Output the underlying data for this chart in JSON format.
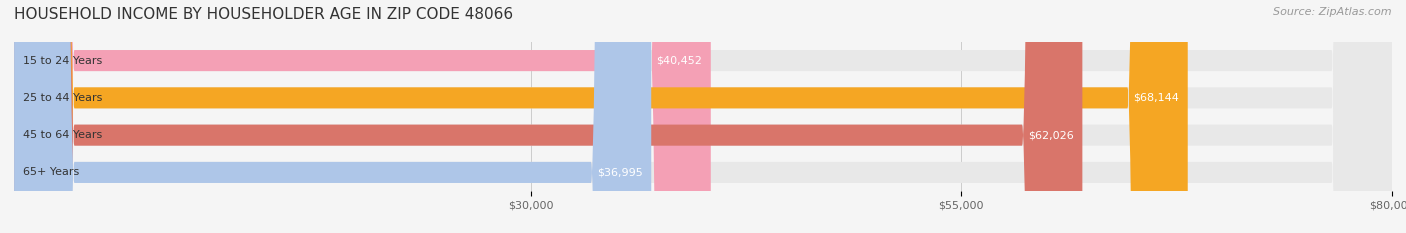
{
  "title": "HOUSEHOLD INCOME BY HOUSEHOLDER AGE IN ZIP CODE 48066",
  "source": "Source: ZipAtlas.com",
  "categories": [
    "15 to 24 Years",
    "25 to 44 Years",
    "45 to 64 Years",
    "65+ Years"
  ],
  "values": [
    40452,
    68144,
    62026,
    36995
  ],
  "bar_colors": [
    "#f4a0b5",
    "#f5a623",
    "#d9756a",
    "#aec6e8"
  ],
  "bar_bg_color": "#e8e8e8",
  "label_colors": [
    "#555555",
    "#ffffff",
    "#ffffff",
    "#555555"
  ],
  "xlim_min": 0,
  "xlim_max": 80000,
  "x_ticks": [
    30000,
    55000,
    80000
  ],
  "x_tick_labels": [
    "$30,000",
    "$55,000",
    "$80,000"
  ],
  "fig_bg_color": "#f5f5f5",
  "bar_height": 0.55,
  "title_fontsize": 11,
  "source_fontsize": 8,
  "label_fontsize": 8,
  "tick_fontsize": 8,
  "category_fontsize": 8
}
